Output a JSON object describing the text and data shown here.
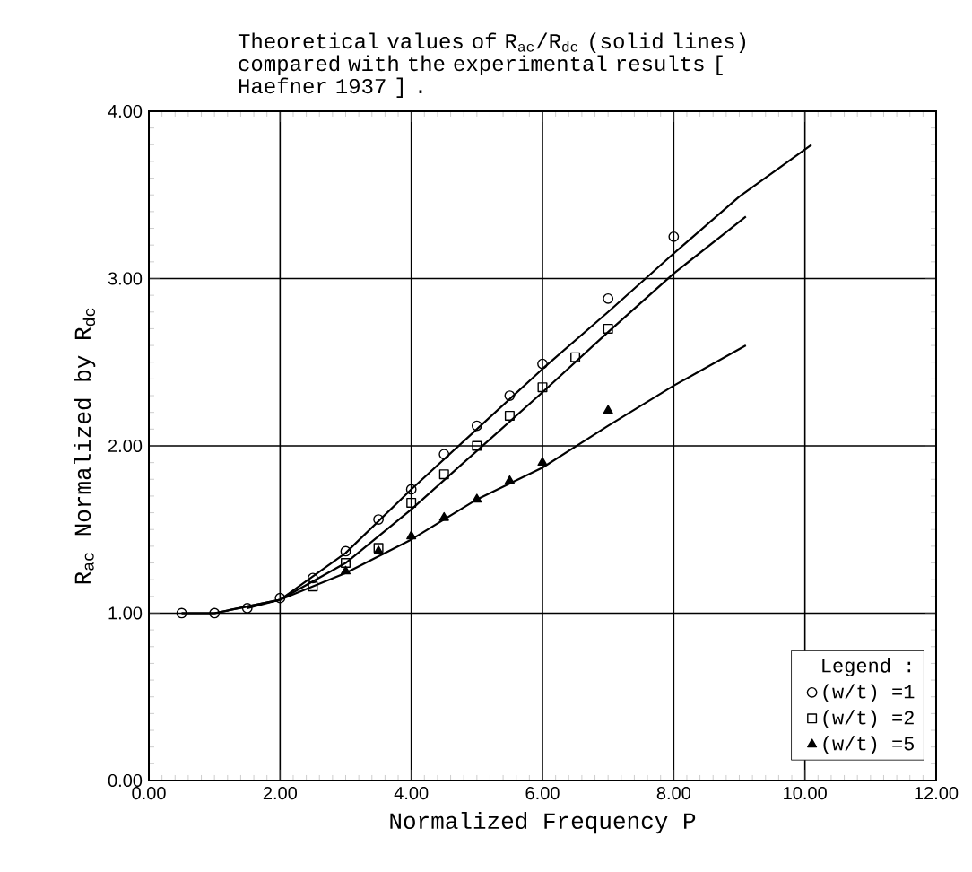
{
  "chart_data": {
    "type": "line",
    "title": "Theoretical values of R$_{ac}$/R$_{dc}$ (solid lines) compared with the experimental results [ Haefner 1937 ] .",
    "xlabel": "Normalized Frequency P",
    "ylabel": "R$_{ac}$ Normalized by R$_{dc}$",
    "legend_title": "Legend :",
    "legend": "bottom right",
    "grid": true,
    "line_style": "solid",
    "xlim": [
      0,
      12
    ],
    "ylim": [
      0,
      4
    ],
    "xticks": [
      {
        "value": 0,
        "label": "0.00"
      },
      {
        "value": 2,
        "label": "2.00"
      },
      {
        "value": 4,
        "label": "4.00"
      },
      {
        "value": 6,
        "label": "6.00"
      },
      {
        "value": 8,
        "label": "8.00"
      },
      {
        "value": 10,
        "label": "10.00"
      },
      {
        "value": 12,
        "label": "12.00"
      }
    ],
    "yticks": [
      {
        "value": 0,
        "label": "0.00"
      },
      {
        "value": 1,
        "label": "1.00"
      },
      {
        "value": 2,
        "label": "2.00"
      },
      {
        "value": 3,
        "label": "3.00"
      },
      {
        "value": 4,
        "label": "4.00"
      }
    ],
    "series": [
      {
        "marker": "none",
        "color": "#000000",
        "x": [
          0.5,
          1,
          2,
          3,
          4,
          5,
          6,
          7,
          8,
          9,
          10.1
        ],
        "values": [
          1.0,
          1.0,
          1.08,
          1.36,
          1.74,
          2.1,
          2.46,
          2.8,
          3.15,
          3.49,
          3.8
        ]
      },
      {
        "marker": "none",
        "color": "#000000",
        "x": [
          0.5,
          1,
          2,
          3,
          4,
          5,
          6,
          7,
          8,
          9.1
        ],
        "values": [
          1.0,
          1.0,
          1.08,
          1.3,
          1.62,
          1.97,
          2.32,
          2.68,
          3.03,
          3.37
        ]
      },
      {
        "marker": "none",
        "color": "#000000",
        "x": [
          1.5,
          2,
          3,
          4,
          5,
          6,
          7,
          8,
          9.1
        ],
        "values": [
          1.03,
          1.08,
          1.24,
          1.44,
          1.68,
          1.87,
          2.12,
          2.36,
          2.6
        ]
      },
      {
        "type": "scatter",
        "name": "(w/t) =1",
        "marker": "circle",
        "color": "#000000",
        "x": [
          0.5,
          1,
          1.5,
          2,
          2.5,
          3,
          3.5,
          4,
          4.5,
          5,
          5.5,
          6,
          7,
          8
        ],
        "values": [
          1.0,
          1.0,
          1.03,
          1.09,
          1.21,
          1.37,
          1.56,
          1.74,
          1.95,
          2.12,
          2.3,
          2.49,
          2.88,
          3.25
        ]
      },
      {
        "type": "scatter",
        "name": "(w/t) =2",
        "marker": "square",
        "color": "#000000",
        "x": [
          2.5,
          3,
          3.5,
          4,
          4.5,
          5,
          5.5,
          6,
          6.5,
          7
        ],
        "values": [
          1.16,
          1.3,
          1.39,
          1.66,
          1.83,
          2.0,
          2.18,
          2.35,
          2.53,
          2.7
        ]
      },
      {
        "type": "scatter",
        "name": "(w/t) =5",
        "marker": "triangle",
        "color": "#000000",
        "x": [
          3,
          3.5,
          4,
          4.5,
          5,
          5.5,
          6,
          7
        ],
        "values": [
          1.25,
          1.37,
          1.46,
          1.57,
          1.68,
          1.79,
          1.9,
          2.21
        ]
      }
    ]
  }
}
